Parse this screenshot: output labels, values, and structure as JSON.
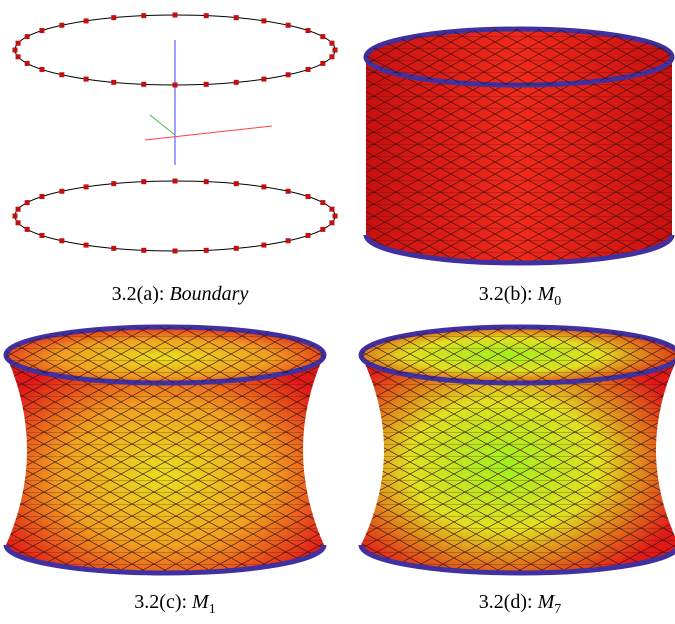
{
  "figure": {
    "panels": [
      {
        "label": "3.2(a):",
        "text": "Boundary"
      },
      {
        "label": "3.2(b):",
        "symbol": "M",
        "subscript": "0"
      },
      {
        "label": "3.2(c):",
        "symbol": "M",
        "subscript": "1"
      },
      {
        "label": "3.2(d):",
        "symbol": "M",
        "subscript": "7"
      }
    ]
  }
}
